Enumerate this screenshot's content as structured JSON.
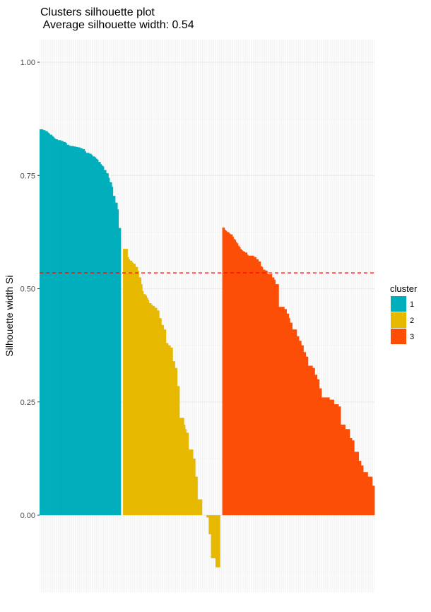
{
  "chart_data": {
    "type": "bar",
    "title": "Clusters silhouette plot",
    "subtitle": " Average silhouette width: 0.54",
    "xlabel": "",
    "ylabel": "Silhouette width Si",
    "ylim": [
      -0.17,
      1.05
    ],
    "yticks": [
      0.0,
      0.25,
      0.5,
      0.75,
      1.0
    ],
    "ytick_labels": [
      "0.00",
      "0.25",
      "0.50",
      "0.75",
      "1.00"
    ],
    "average_line": 0.535,
    "grid": true,
    "legend_position": "right",
    "legend_title": "cluster",
    "series": [
      {
        "name": "1",
        "color": "#00AFBB",
        "values": [
          0.852,
          0.852,
          0.852,
          0.85,
          0.85,
          0.848,
          0.848,
          0.845,
          0.843,
          0.84,
          0.84,
          0.837,
          0.835,
          0.832,
          0.83,
          0.83,
          0.828,
          0.828,
          0.828,
          0.826,
          0.826,
          0.824,
          0.824,
          0.822,
          0.818,
          0.818,
          0.816,
          0.815,
          0.815,
          0.815,
          0.814,
          0.814,
          0.813,
          0.813,
          0.812,
          0.812,
          0.81,
          0.81,
          0.808,
          0.808,
          0.804,
          0.8,
          0.8,
          0.8,
          0.798,
          0.798,
          0.795,
          0.792,
          0.792,
          0.79,
          0.787,
          0.785,
          0.78,
          0.78,
          0.775,
          0.772,
          0.77,
          0.762,
          0.762,
          0.755,
          0.755,
          0.745,
          0.735,
          0.735,
          0.725,
          0.705,
          0.705,
          0.69,
          0.69,
          0.675,
          0.634,
          0.634
        ]
      },
      {
        "name": "2",
        "color": "#E7B800",
        "values": [
          0.588,
          0.588,
          0.588,
          0.588,
          0.57,
          0.565,
          0.562,
          0.562,
          0.558,
          0.555,
          0.555,
          0.548,
          0.548,
          0.54,
          0.525,
          0.525,
          0.51,
          0.495,
          0.488,
          0.488,
          0.485,
          0.48,
          0.475,
          0.468,
          0.468,
          0.465,
          0.462,
          0.462,
          0.458,
          0.458,
          0.452,
          0.452,
          0.435,
          0.435,
          0.42,
          0.42,
          0.41,
          0.41,
          0.38,
          0.38,
          0.375,
          0.375,
          0.37,
          0.37,
          0.34,
          0.34,
          0.325,
          0.325,
          0.285,
          0.285,
          0.215,
          0.215,
          0.215,
          0.215,
          0.2,
          0.19,
          0.182,
          0.182,
          0.145,
          0.145,
          0.145,
          0.145,
          0.125,
          0.125,
          0.085,
          0.085,
          0.035,
          0.035,
          0.035,
          0.035,
          0.0,
          0.0,
          0.0,
          0.0,
          -0.005,
          -0.005,
          -0.042,
          -0.042,
          -0.095,
          -0.095,
          -0.095,
          -0.095,
          -0.115,
          -0.115,
          -0.115,
          -0.115
        ]
      },
      {
        "name": "3",
        "color": "#FC4E07",
        "values": [
          0.635,
          0.635,
          0.63,
          0.628,
          0.625,
          0.625,
          0.622,
          0.62,
          0.62,
          0.615,
          0.61,
          0.608,
          0.603,
          0.6,
          0.595,
          0.592,
          0.588,
          0.585,
          0.583,
          0.582,
          0.58,
          0.58,
          0.575,
          0.573,
          0.573,
          0.573,
          0.573,
          0.573,
          0.57,
          0.57,
          0.565,
          0.565,
          0.56,
          0.56,
          0.55,
          0.548,
          0.542,
          0.542,
          0.54,
          0.54,
          0.532,
          0.532,
          0.532,
          0.532,
          0.525,
          0.525,
          0.52,
          0.51,
          0.51,
          0.51,
          0.46,
          0.46,
          0.46,
          0.46,
          0.46,
          0.455,
          0.455,
          0.445,
          0.445,
          0.435,
          0.425,
          0.425,
          0.41,
          0.41,
          0.41,
          0.41,
          0.395,
          0.395,
          0.385,
          0.385,
          0.375,
          0.375,
          0.36,
          0.36,
          0.35,
          0.35,
          0.33,
          0.33,
          0.33,
          0.33,
          0.325,
          0.325,
          0.31,
          0.31,
          0.3,
          0.3,
          0.28,
          0.28,
          0.26,
          0.26,
          0.26,
          0.26,
          0.26,
          0.26,
          0.26,
          0.255,
          0.255,
          0.255,
          0.255,
          0.245,
          0.245,
          0.245,
          0.245,
          0.24,
          0.24,
          0.2,
          0.2,
          0.2,
          0.2,
          0.19,
          0.19,
          0.19,
          0.19,
          0.17,
          0.17,
          0.165,
          0.165,
          0.14,
          0.14,
          0.14,
          0.14,
          0.12,
          0.12,
          0.11,
          0.11,
          0.095,
          0.095,
          0.095,
          0.095,
          0.085,
          0.085,
          0.085,
          0.085,
          0.065,
          0.065
        ]
      }
    ],
    "gap_count": 2
  }
}
